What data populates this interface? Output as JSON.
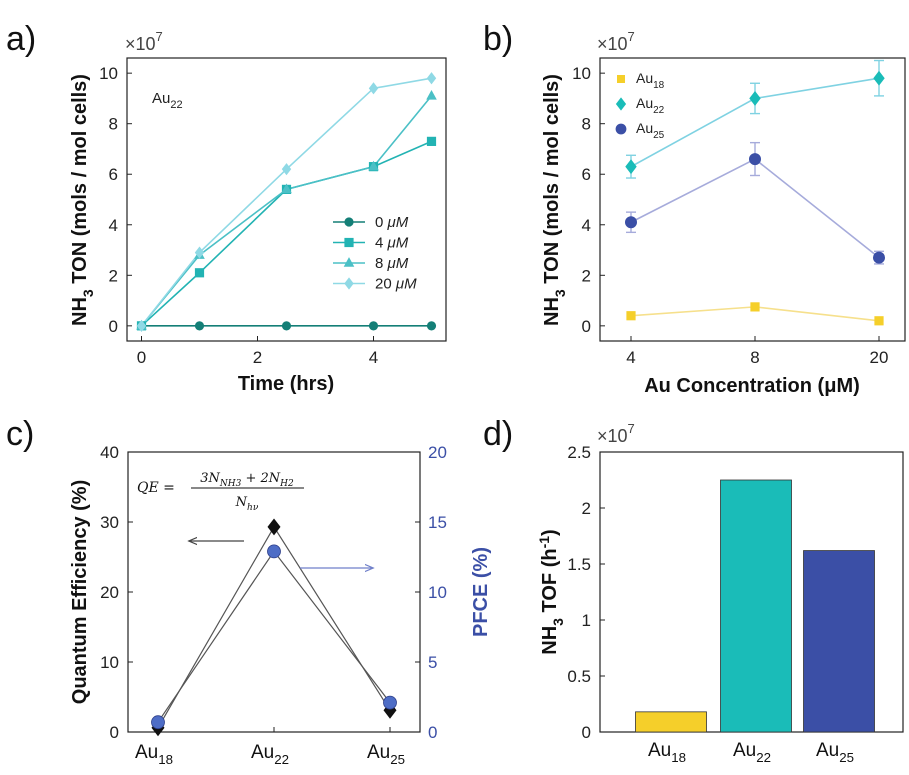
{
  "colors": {
    "au18": "#f5cf2a",
    "au22": "#1abcb8",
    "au25": "#3b4fa6",
    "pfce_axis": "#3b4fa6",
    "s0": "#147f77",
    "s4": "#22b3b3",
    "s8": "#4bc0c6",
    "s20": "#8fd9e5",
    "line_b_au18": "#f6e08c",
    "line_b_au22": "#7fd2e2",
    "line_b_au25": "#a6abdb"
  },
  "panels": {
    "a": {
      "label": "a)",
      "exponent_base": "×10",
      "exponent_power": "7",
      "annotation_base": "Au",
      "annotation_sub": "22",
      "xlabel": "Time (hrs)",
      "ylabel_nh": "NH",
      "ylabel_sub": "3",
      "ylabel_rest": " TON (mols / mol cells)"
    },
    "b": {
      "label": "b)",
      "exponent_base": "×10",
      "exponent_power": "7",
      "xlabel": "Au Concentration (μM)",
      "ylabel_nh": "NH",
      "ylabel_sub": "3",
      "ylabel_rest": " TON (mols / mol cells)"
    },
    "c": {
      "label": "c)",
      "ylabel_left": "Quantum Efficiency (%)",
      "ylabel_right": "PFCE (%)",
      "eq_lhs": "QE =",
      "eq_num": "3N",
      "eq_num_sub1": "NH3",
      "eq_num_mid": " + 2N",
      "eq_num_sub2": "H2",
      "eq_den": "N",
      "eq_den_sub": "hν"
    },
    "d": {
      "label": "d)",
      "exponent_base": "×10",
      "exponent_power": "7",
      "ylabel_nh": "NH",
      "ylabel_sub": "3",
      "ylabel_rest": " TOF (h",
      "ylabel_sup": "-1",
      "ylabel_close": ")"
    }
  },
  "chart_data": [
    {
      "panel": "a",
      "type": "line",
      "x": [
        0,
        1,
        2.5,
        4,
        5
      ],
      "xticks": [
        0,
        2,
        4
      ],
      "xlim": [
        -0.25,
        5.25
      ],
      "ylim": [
        -0.6,
        10.6
      ],
      "yticks": [
        0,
        2,
        4,
        6,
        8,
        10
      ],
      "y_multiplier": "1e7",
      "xlabel": "Time (hrs)",
      "ylabel": "NH3 TON (mols / mol cells)",
      "legend_position": "lower-right",
      "series": [
        {
          "name": "0 μM",
          "name_base": "0 ",
          "name_unit": "μM",
          "marker": "circle",
          "values": [
            0,
            0,
            0,
            0,
            0
          ]
        },
        {
          "name": "4 μM",
          "name_base": "4 ",
          "name_unit": "μM",
          "marker": "square",
          "values": [
            0,
            2.1,
            5.4,
            6.3,
            7.3
          ]
        },
        {
          "name": "8 μM",
          "name_base": "8 ",
          "name_unit": "μM",
          "marker": "triangle",
          "values": [
            0,
            2.8,
            5.4,
            6.3,
            9.1
          ]
        },
        {
          "name": "20 μM",
          "name_base": "20 ",
          "name_unit": "μM",
          "marker": "diamond",
          "values": [
            0,
            2.9,
            6.2,
            9.4,
            9.8
          ]
        }
      ]
    },
    {
      "panel": "b",
      "type": "line",
      "categories": [
        "4",
        "8",
        "20"
      ],
      "ylim": [
        -0.6,
        10.6
      ],
      "yticks": [
        0,
        2,
        4,
        6,
        8,
        10
      ],
      "y_multiplier": "1e7",
      "xlabel": "Au Concentration (μM)",
      "ylabel": "NH3 TON (mols / mol cells)",
      "legend_position": "top-left",
      "series": [
        {
          "name": "Au18",
          "name_base": "Au",
          "name_sub": "18",
          "marker": "square",
          "values": [
            0.4,
            0.75,
            0.2
          ],
          "errors": [
            0,
            0,
            0
          ]
        },
        {
          "name": "Au22",
          "name_base": "Au",
          "name_sub": "22",
          "marker": "diamond",
          "values": [
            6.3,
            9.0,
            9.8
          ],
          "errors": [
            0.45,
            0.6,
            0.7
          ]
        },
        {
          "name": "Au25",
          "name_base": "Au",
          "name_sub": "25",
          "marker": "circle",
          "values": [
            4.1,
            6.6,
            2.7
          ],
          "errors": [
            0.4,
            0.65,
            0.25
          ]
        }
      ]
    },
    {
      "panel": "c",
      "type": "line",
      "categories": [
        "Au18",
        "Au22",
        "Au25"
      ],
      "category_labels": [
        {
          "base": "Au",
          "sub": "18"
        },
        {
          "base": "Au",
          "sub": "22"
        },
        {
          "base": "Au",
          "sub": "25"
        }
      ],
      "ylim_left": [
        0,
        40
      ],
      "yticks_left": [
        0,
        10,
        20,
        30,
        40
      ],
      "ylim_right": [
        0,
        20
      ],
      "yticks_right": [
        0,
        5,
        10,
        15,
        20
      ],
      "ylabel_left": "Quantum Efficiency (%)",
      "ylabel_right": "PFCE (%)",
      "series": [
        {
          "axis": "left",
          "marker": "diamond",
          "values": [
            0.6,
            29.3,
            3.1
          ]
        },
        {
          "axis": "right",
          "marker": "circle",
          "values": [
            0.7,
            12.9,
            2.1
          ]
        }
      ]
    },
    {
      "panel": "d",
      "type": "bar",
      "categories": [
        "Au18",
        "Au22",
        "Au25"
      ],
      "category_labels": [
        {
          "base": "Au",
          "sub": "18"
        },
        {
          "base": "Au",
          "sub": "22"
        },
        {
          "base": "Au",
          "sub": "25"
        }
      ],
      "values": [
        0.18,
        2.25,
        1.62
      ],
      "ylim": [
        0,
        2.5
      ],
      "yticks": [
        0,
        0.5,
        1,
        1.5,
        2,
        2.5
      ],
      "ytick_labels": [
        "0",
        "0.5",
        "1",
        "1.5",
        "2",
        "2.5"
      ],
      "y_multiplier": "1e7",
      "ylabel": "NH3 TOF (h-1)"
    }
  ]
}
